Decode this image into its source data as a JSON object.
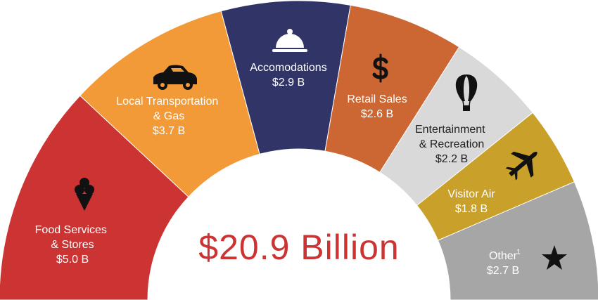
{
  "chart_data": {
    "type": "pie",
    "center_text": "$20.9 Billion",
    "categories": [
      "Food Services & Stores",
      "Local Transportation & Gas",
      "Accomodations",
      "Retail Sales",
      "Entertainment & Recreation",
      "Visitor Air",
      "Other"
    ],
    "values": [
      5.0,
      3.7,
      2.9,
      2.6,
      2.2,
      1.8,
      2.7
    ],
    "value_labels": [
      "$5.0 B",
      "$3.7 B",
      "$2.9 B",
      "$2.6 B",
      "$2.2 B",
      "$1.8 B",
      "$2.7 B"
    ],
    "colors": [
      "#cc3333",
      "#f29a38",
      "#303466",
      "#cc6633",
      "#d9d9d9",
      "#c9a02a",
      "#a6a6a6"
    ],
    "notes": {
      "6": "1"
    },
    "half_donut": true
  }
}
